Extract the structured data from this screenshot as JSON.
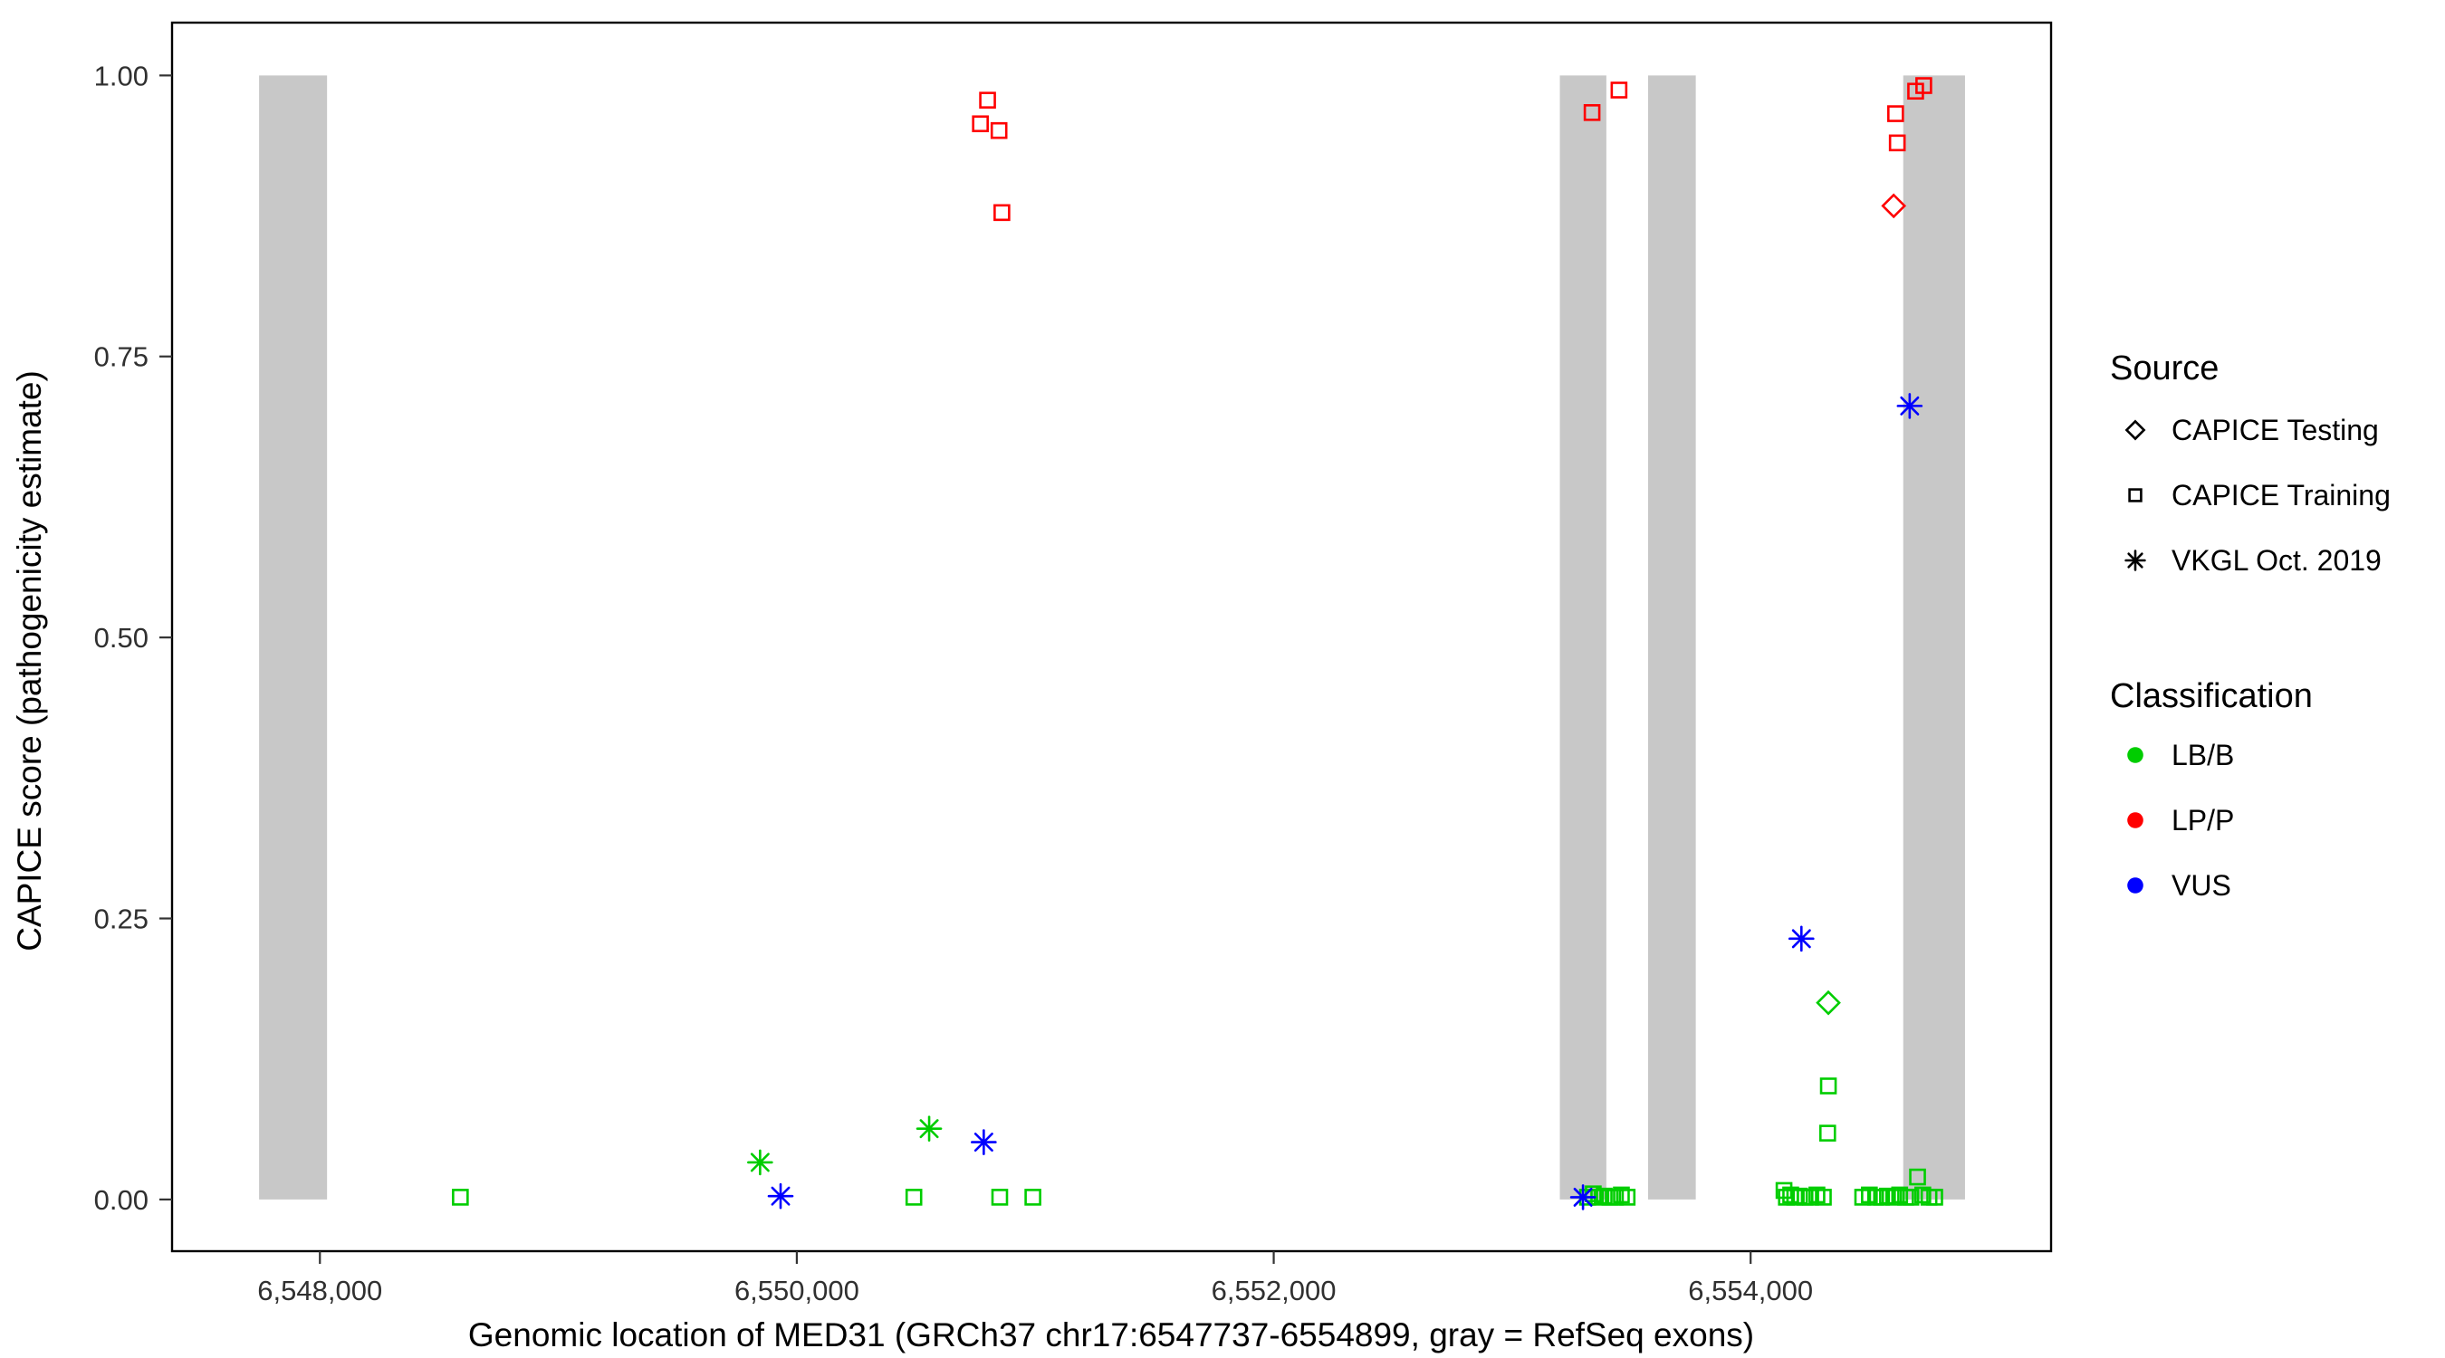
{
  "chart_data": {
    "type": "scatter",
    "title": "",
    "xlabel": "Genomic location of MED31 (GRCh37 chr17:6547737-6554899, gray = RefSeq exons)",
    "ylabel": "CAPICE score (pathogenicity estimate)",
    "xlim": [
      6547380,
      6555260
    ],
    "ylim": [
      -0.046,
      1.047
    ],
    "grid": "off",
    "panel_border": "on",
    "x_ticks": [
      {
        "value": 6548000,
        "label": "6,548,000"
      },
      {
        "value": 6550000,
        "label": "6,550,000"
      },
      {
        "value": 6552000,
        "label": "6,552,000"
      },
      {
        "value": 6554000,
        "label": "6,554,000"
      }
    ],
    "y_ticks": [
      {
        "value": 0.0,
        "label": "0.00"
      },
      {
        "value": 0.25,
        "label": "0.25"
      },
      {
        "value": 0.5,
        "label": "0.50"
      },
      {
        "value": 0.75,
        "label": "0.75"
      },
      {
        "value": 1.0,
        "label": "1.00"
      }
    ],
    "exon_color": "#c8c8c8",
    "exons_note": "gray vertical bars = RefSeq exons, drawn spanning score 0 to 1",
    "exons": [
      {
        "start": 6547745,
        "end": 6548030
      },
      {
        "start": 6553200,
        "end": 6553395
      },
      {
        "start": 6553570,
        "end": 6553770
      },
      {
        "start": 6554640,
        "end": 6554899
      }
    ],
    "classification_colors": {
      "LB/B": "#00cd00",
      "LP/P": "#ff0000",
      "VUS": "#0000ff"
    },
    "source_shapes": {
      "CAPICE Testing": "diamond",
      "CAPICE Training": "square",
      "VKGL Oct. 2019": "asterisk"
    },
    "points": [
      {
        "x": 6548589,
        "y": 0.002,
        "source": "CAPICE Training",
        "class": "LB/B"
      },
      {
        "x": 6550491,
        "y": 0.002,
        "source": "CAPICE Training",
        "class": "LB/B"
      },
      {
        "x": 6550851,
        "y": 0.002,
        "source": "CAPICE Training",
        "class": "LB/B"
      },
      {
        "x": 6550990,
        "y": 0.002,
        "source": "CAPICE Training",
        "class": "LB/B"
      },
      {
        "x": 6553316,
        "y": 0.002,
        "source": "CAPICE Training",
        "class": "LB/B"
      },
      {
        "x": 6553340,
        "y": 0.005,
        "source": "CAPICE Training",
        "class": "LB/B"
      },
      {
        "x": 6553363,
        "y": 0.002,
        "source": "CAPICE Training",
        "class": "LB/B"
      },
      {
        "x": 6553386,
        "y": 0.003,
        "source": "CAPICE Training",
        "class": "LB/B"
      },
      {
        "x": 6553410,
        "y": 0.002,
        "source": "CAPICE Training",
        "class": "LB/B"
      },
      {
        "x": 6553433,
        "y": 0.002,
        "source": "CAPICE Training",
        "class": "LB/B"
      },
      {
        "x": 6553458,
        "y": 0.004,
        "source": "CAPICE Training",
        "class": "LB/B"
      },
      {
        "x": 6553482,
        "y": 0.002,
        "source": "CAPICE Training",
        "class": "LB/B"
      },
      {
        "x": 6554140,
        "y": 0.008,
        "source": "CAPICE Training",
        "class": "LB/B"
      },
      {
        "x": 6554150,
        "y": 0.002,
        "source": "CAPICE Training",
        "class": "LB/B"
      },
      {
        "x": 6554168,
        "y": 0.004,
        "source": "CAPICE Training",
        "class": "LB/B"
      },
      {
        "x": 6554185,
        "y": 0.002,
        "source": "CAPICE Training",
        "class": "LB/B"
      },
      {
        "x": 6554205,
        "y": 0.003,
        "source": "CAPICE Training",
        "class": "LB/B"
      },
      {
        "x": 6554228,
        "y": 0.002,
        "source": "CAPICE Training",
        "class": "LB/B"
      },
      {
        "x": 6554252,
        "y": 0.002,
        "source": "CAPICE Training",
        "class": "LB/B"
      },
      {
        "x": 6554278,
        "y": 0.004,
        "source": "CAPICE Training",
        "class": "LB/B"
      },
      {
        "x": 6554305,
        "y": 0.002,
        "source": "CAPICE Training",
        "class": "LB/B"
      },
      {
        "x": 6554323,
        "y": 0.059,
        "source": "CAPICE Training",
        "class": "LB/B"
      },
      {
        "x": 6554326,
        "y": 0.101,
        "source": "CAPICE Training",
        "class": "LB/B"
      },
      {
        "x": 6554470,
        "y": 0.002,
        "source": "CAPICE Training",
        "class": "LB/B"
      },
      {
        "x": 6554498,
        "y": 0.004,
        "source": "CAPICE Training",
        "class": "LB/B"
      },
      {
        "x": 6554524,
        "y": 0.002,
        "source": "CAPICE Training",
        "class": "LB/B"
      },
      {
        "x": 6554549,
        "y": 0.002,
        "source": "CAPICE Training",
        "class": "LB/B"
      },
      {
        "x": 6554574,
        "y": 0.003,
        "source": "CAPICE Training",
        "class": "LB/B"
      },
      {
        "x": 6554600,
        "y": 0.002,
        "source": "CAPICE Training",
        "class": "LB/B"
      },
      {
        "x": 6554625,
        "y": 0.004,
        "source": "CAPICE Training",
        "class": "LB/B"
      },
      {
        "x": 6554650,
        "y": 0.002,
        "source": "CAPICE Training",
        "class": "LB/B"
      },
      {
        "x": 6554672,
        "y": 0.002,
        "source": "CAPICE Training",
        "class": "LB/B"
      },
      {
        "x": 6554700,
        "y": 0.02,
        "source": "CAPICE Training",
        "class": "LB/B"
      },
      {
        "x": 6554722,
        "y": 0.004,
        "source": "CAPICE Training",
        "class": "LB/B"
      },
      {
        "x": 6554748,
        "y": 0.002,
        "source": "CAPICE Training",
        "class": "LB/B"
      },
      {
        "x": 6554772,
        "y": 0.002,
        "source": "CAPICE Training",
        "class": "LB/B"
      },
      {
        "x": 6554326,
        "y": 0.175,
        "source": "CAPICE Testing",
        "class": "LB/B"
      },
      {
        "x": 6549846,
        "y": 0.033,
        "source": "VKGL Oct. 2019",
        "class": "LB/B"
      },
      {
        "x": 6550555,
        "y": 0.063,
        "source": "VKGL Oct. 2019",
        "class": "LB/B"
      },
      {
        "x": 6549932,
        "y": 0.003,
        "source": "VKGL Oct. 2019",
        "class": "VUS"
      },
      {
        "x": 6550784,
        "y": 0.051,
        "source": "VKGL Oct. 2019",
        "class": "VUS"
      },
      {
        "x": 6553297,
        "y": 0.002,
        "source": "VKGL Oct. 2019",
        "class": "VUS"
      },
      {
        "x": 6554213,
        "y": 0.232,
        "source": "VKGL Oct. 2019",
        "class": "VUS"
      },
      {
        "x": 6554667,
        "y": 0.706,
        "source": "VKGL Oct. 2019",
        "class": "VUS"
      },
      {
        "x": 6550800,
        "y": 0.978,
        "source": "CAPICE Training",
        "class": "LP/P"
      },
      {
        "x": 6550770,
        "y": 0.957,
        "source": "CAPICE Training",
        "class": "LP/P"
      },
      {
        "x": 6550848,
        "y": 0.951,
        "source": "CAPICE Training",
        "class": "LP/P"
      },
      {
        "x": 6550860,
        "y": 0.878,
        "source": "CAPICE Training",
        "class": "LP/P"
      },
      {
        "x": 6553335,
        "y": 0.967,
        "source": "CAPICE Training",
        "class": "LP/P"
      },
      {
        "x": 6553448,
        "y": 0.987,
        "source": "CAPICE Training",
        "class": "LP/P"
      },
      {
        "x": 6554608,
        "y": 0.966,
        "source": "CAPICE Training",
        "class": "LP/P"
      },
      {
        "x": 6554615,
        "y": 0.94,
        "source": "CAPICE Training",
        "class": "LP/P"
      },
      {
        "x": 6554692,
        "y": 0.986,
        "source": "CAPICE Training",
        "class": "LP/P"
      },
      {
        "x": 6554726,
        "y": 0.991,
        "source": "CAPICE Training",
        "class": "LP/P"
      },
      {
        "x": 6554600,
        "y": 0.884,
        "source": "CAPICE Testing",
        "class": "LP/P"
      }
    ],
    "legend": {
      "position": "right",
      "source_title": "Source",
      "source_items": [
        {
          "label": "CAPICE Testing",
          "shape": "diamond"
        },
        {
          "label": "CAPICE Training",
          "shape": "square"
        },
        {
          "label": "VKGL Oct. 2019",
          "shape": "asterisk"
        }
      ],
      "classification_title": "Classification",
      "classification_items": [
        {
          "label": "LB/B",
          "color": "#00cd00"
        },
        {
          "label": "LP/P",
          "color": "#ff0000"
        },
        {
          "label": "VUS",
          "color": "#0000ff"
        }
      ]
    }
  }
}
